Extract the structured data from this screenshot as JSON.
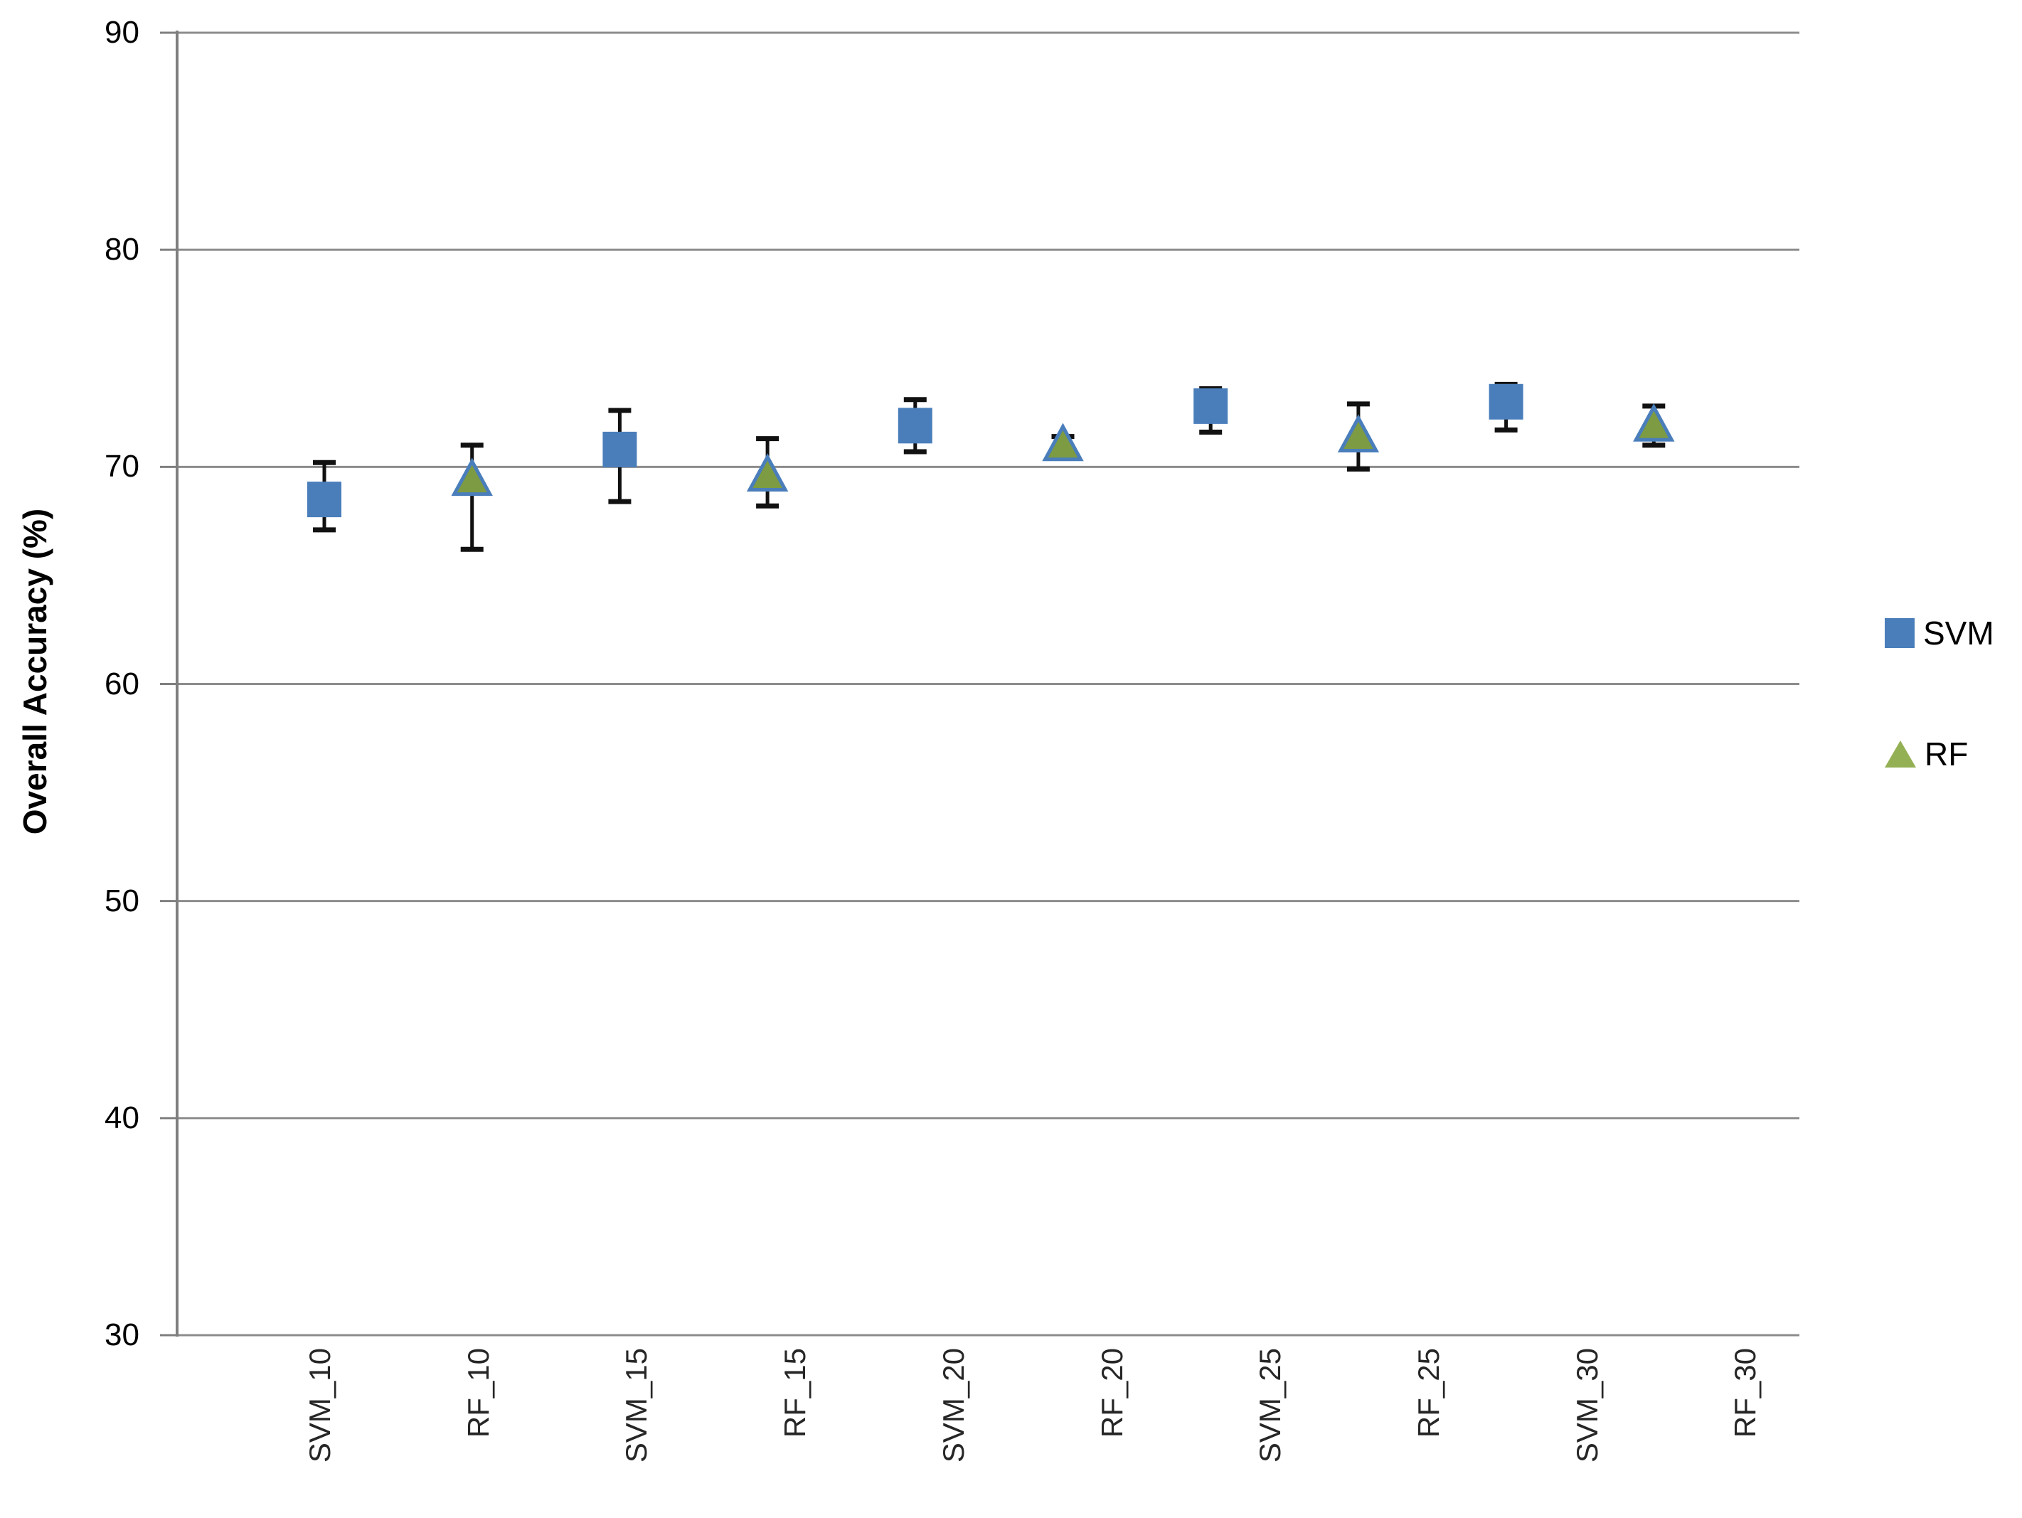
{
  "chart_data": {
    "type": "scatter",
    "title": "",
    "xlabel": "",
    "ylabel": "Overall Accuracy (%)",
    "ylim": [
      30,
      90
    ],
    "y_ticks": [
      90,
      80,
      70,
      60,
      50,
      40,
      30
    ],
    "grid": "horizontal gridlines on",
    "legend_position": "right",
    "categories": [
      "SVM_10",
      "RF_10",
      "SVM_15",
      "RF_15",
      "SVM_20",
      "RF_20",
      "SVM_25",
      "RF_25",
      "SVM_30",
      "RF_30"
    ],
    "series": [
      {
        "name": "SVM",
        "marker": "square",
        "color": "#4A7EBB",
        "points": [
          {
            "category": "SVM_10",
            "value": 68.5,
            "err_low": 67.1,
            "err_high": 70.2
          },
          {
            "category": "SVM_15",
            "value": 70.8,
            "err_low": 68.4,
            "err_high": 72.6
          },
          {
            "category": "SVM_20",
            "value": 71.9,
            "err_low": 70.7,
            "err_high": 73.1
          },
          {
            "category": "SVM_25",
            "value": 72.8,
            "err_low": 71.6,
            "err_high": 73.6
          },
          {
            "category": "SVM_30",
            "value": 73.0,
            "err_low": 71.7,
            "err_high": 73.8
          }
        ]
      },
      {
        "name": "RF",
        "marker": "triangle",
        "color": "#94B054",
        "fill": "#7D9B43",
        "outline": "#4A7EBB",
        "points": [
          {
            "category": "RF_10",
            "value": 69.5,
            "err_low": 66.2,
            "err_high": 71.0
          },
          {
            "category": "RF_15",
            "value": 69.7,
            "err_low": 68.2,
            "err_high": 71.3
          },
          {
            "category": "RF_20",
            "value": 71.1,
            "err_low": 70.8,
            "err_high": 71.4
          },
          {
            "category": "RF_25",
            "value": 71.5,
            "err_low": 69.9,
            "err_high": 72.9
          },
          {
            "category": "RF_30",
            "value": 72.0,
            "err_low": 71.0,
            "err_high": 72.8
          }
        ]
      }
    ],
    "legend": [
      "SVM",
      "RF"
    ],
    "colors": {
      "gridline": "#8C8C8C",
      "axis": "#7F7F7F",
      "error_bar": "#111111"
    }
  }
}
